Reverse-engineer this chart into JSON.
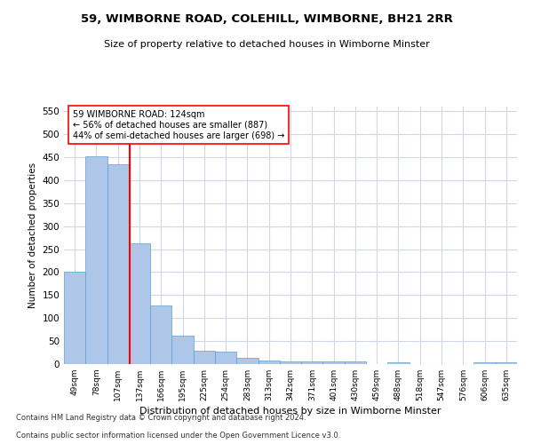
{
  "title": "59, WIMBORNE ROAD, COLEHILL, WIMBORNE, BH21 2RR",
  "subtitle": "Size of property relative to detached houses in Wimborne Minster",
  "xlabel": "Distribution of detached houses by size in Wimborne Minster",
  "ylabel": "Number of detached properties",
  "footer1": "Contains HM Land Registry data © Crown copyright and database right 2024.",
  "footer2": "Contains public sector information licensed under the Open Government Licence v3.0.",
  "bin_labels": [
    "49sqm",
    "78sqm",
    "107sqm",
    "137sqm",
    "166sqm",
    "195sqm",
    "225sqm",
    "254sqm",
    "283sqm",
    "313sqm",
    "342sqm",
    "371sqm",
    "401sqm",
    "430sqm",
    "459sqm",
    "488sqm",
    "518sqm",
    "547sqm",
    "576sqm",
    "606sqm",
    "635sqm"
  ],
  "bar_values": [
    200,
    452,
    435,
    263,
    127,
    61,
    29,
    28,
    13,
    8,
    5,
    5,
    5,
    6,
    0,
    4,
    0,
    0,
    0,
    4,
    4
  ],
  "bar_color": "#aec6e8",
  "bar_edge_color": "#5a9fd4",
  "vline_x": 2.55,
  "ylim": [
    0,
    560
  ],
  "yticks": [
    0,
    50,
    100,
    150,
    200,
    250,
    300,
    350,
    400,
    450,
    500,
    550
  ],
  "background_color": "#ffffff",
  "grid_color": "#d0d8e8",
  "ann_text_line1": "59 WIMBORNE ROAD: 124sqm",
  "ann_text_line2": "← 56% of detached houses are smaller (887)",
  "ann_text_line3": "44% of semi-detached houses are larger (698) →"
}
